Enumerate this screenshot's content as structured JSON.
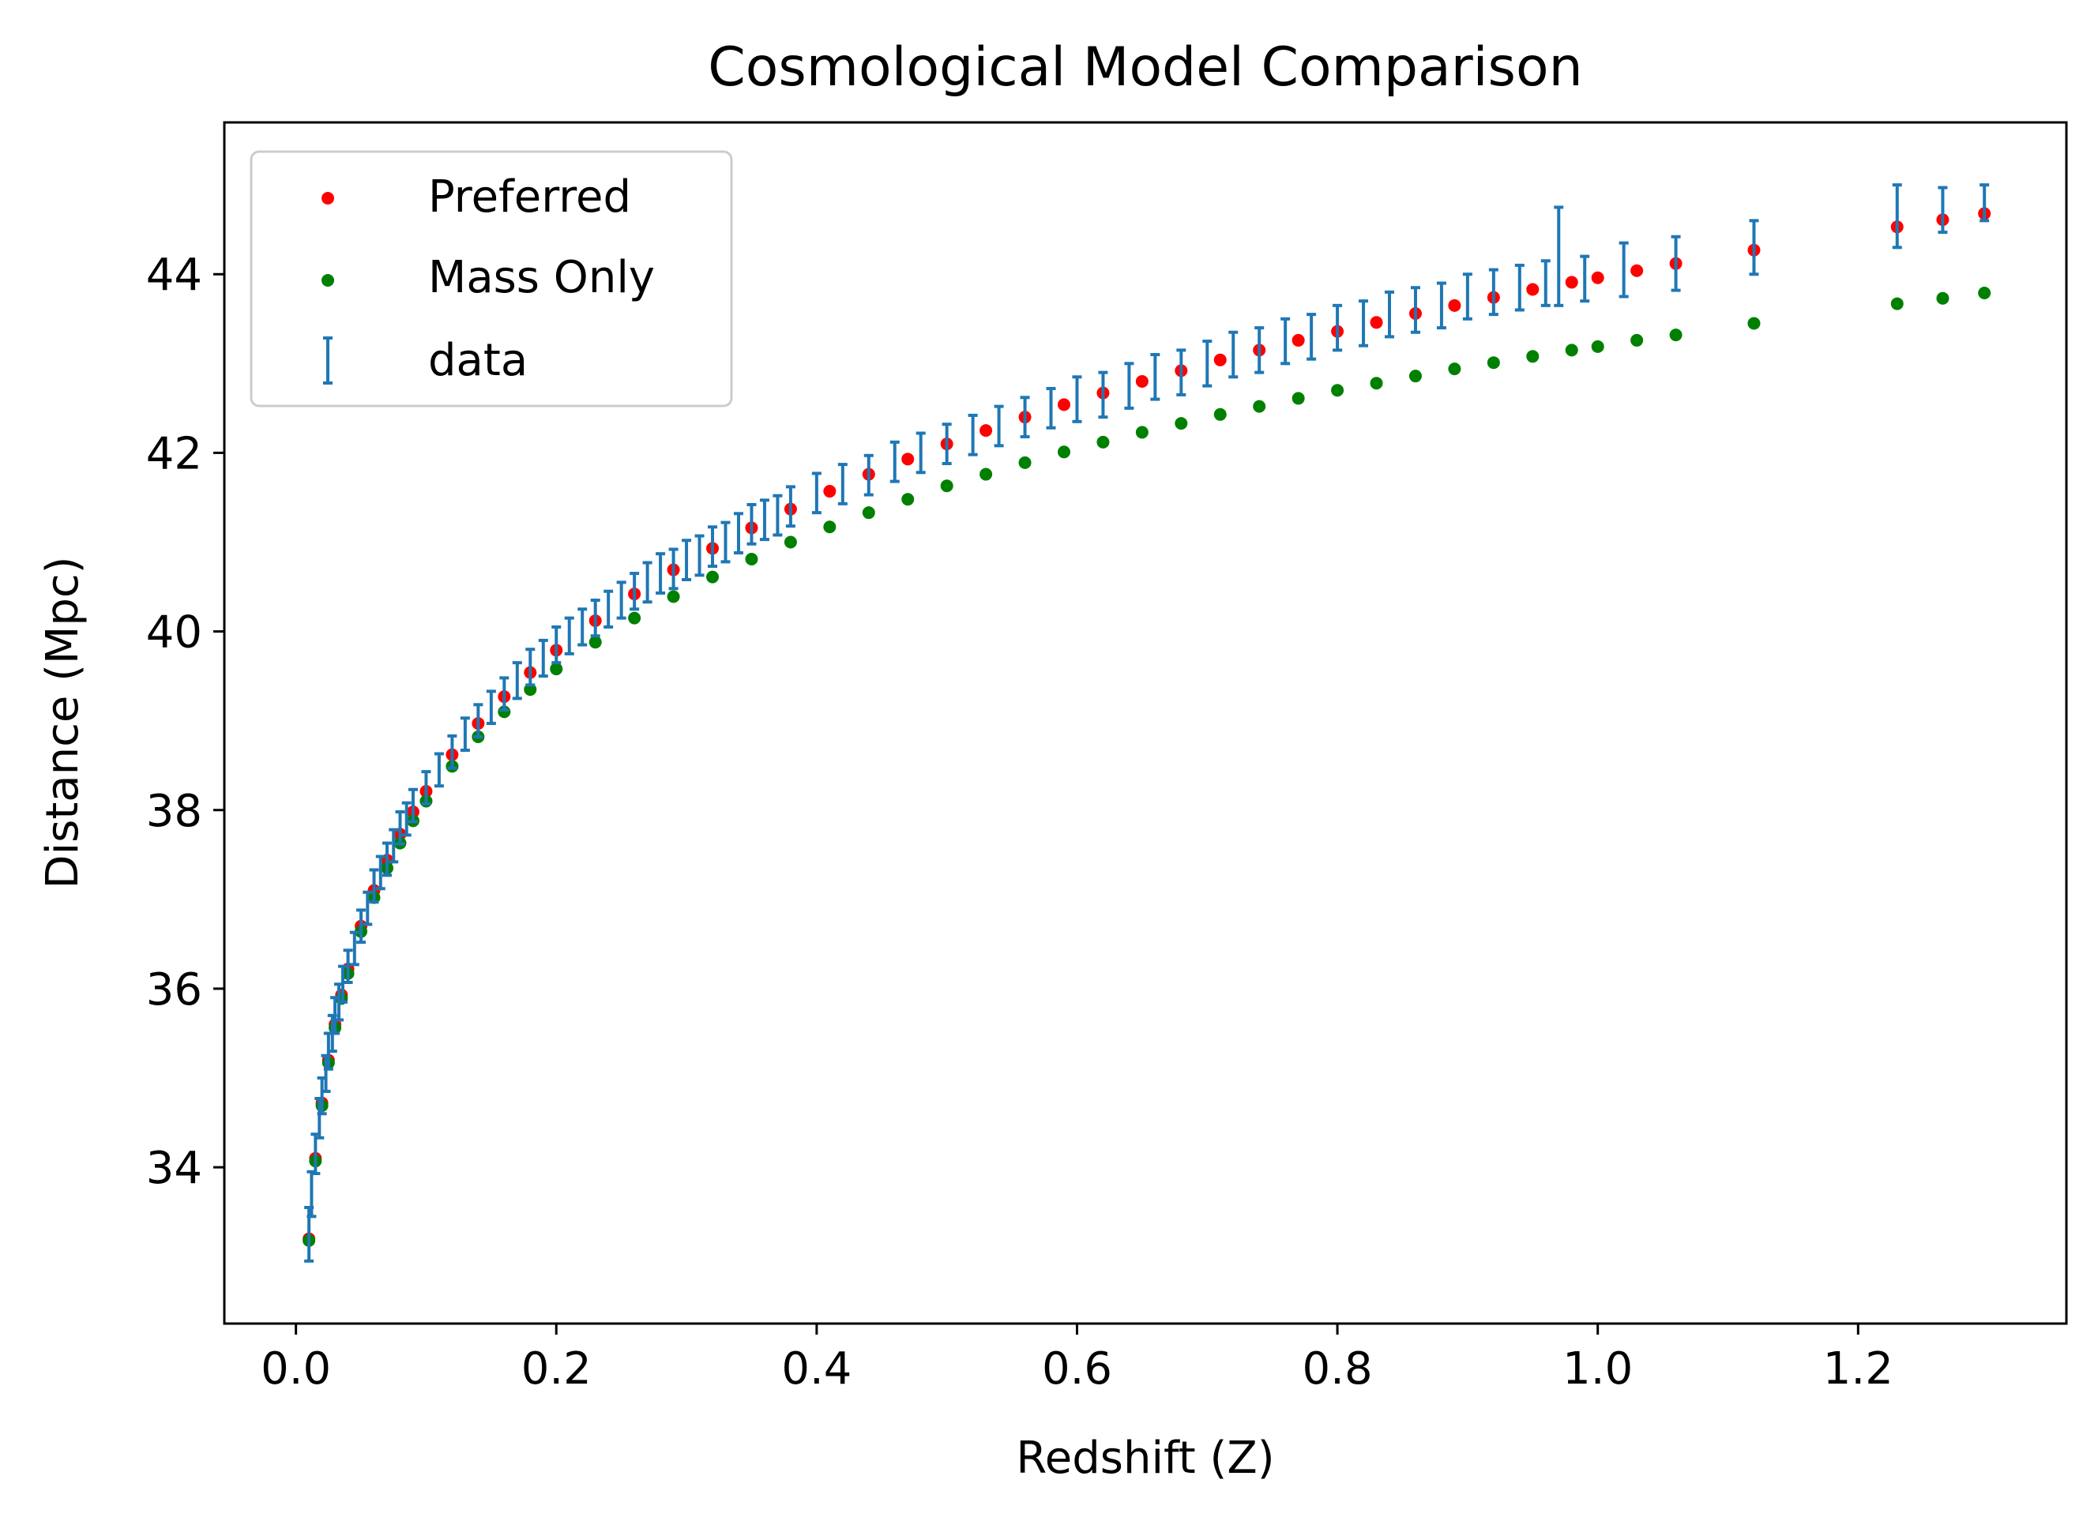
{
  "chart_data": {
    "type": "scatter",
    "title": "Cosmological Model Comparison",
    "xlabel": "Redshift (Z)",
    "ylabel": "Distance (Mpc)",
    "xlim": [
      -0.055,
      1.36
    ],
    "ylim": [
      32.25,
      45.7
    ],
    "xticks": [
      0.0,
      0.2,
      0.4,
      0.6,
      0.8,
      1.0,
      1.2
    ],
    "xtick_labels": [
      "0.0",
      "0.2",
      "0.4",
      "0.6",
      "0.8",
      "1.0",
      "1.2"
    ],
    "yticks": [
      34,
      36,
      38,
      40,
      42,
      44
    ],
    "ytick_labels": [
      "34",
      "36",
      "38",
      "40",
      "42",
      "44"
    ],
    "grid": false,
    "legend_position": "upper-left",
    "series": [
      {
        "name": "Preferred",
        "kind": "points",
        "color": "#ff0000",
        "points": [
          [
            0.01,
            33.2
          ],
          [
            0.015,
            34.1
          ],
          [
            0.02,
            34.72
          ],
          [
            0.025,
            35.2
          ],
          [
            0.03,
            35.6
          ],
          [
            0.035,
            35.93
          ],
          [
            0.04,
            36.22
          ],
          [
            0.05,
            36.7
          ],
          [
            0.06,
            37.1
          ],
          [
            0.07,
            37.44
          ],
          [
            0.08,
            37.73
          ],
          [
            0.09,
            37.98
          ],
          [
            0.1,
            38.21
          ],
          [
            0.12,
            38.62
          ],
          [
            0.14,
            38.97
          ],
          [
            0.16,
            39.27
          ],
          [
            0.18,
            39.54
          ],
          [
            0.2,
            39.79
          ],
          [
            0.23,
            40.12
          ],
          [
            0.26,
            40.42
          ],
          [
            0.29,
            40.69
          ],
          [
            0.32,
            40.93
          ],
          [
            0.35,
            41.16
          ],
          [
            0.38,
            41.37
          ],
          [
            0.41,
            41.57
          ],
          [
            0.44,
            41.76
          ],
          [
            0.47,
            41.93
          ],
          [
            0.5,
            42.1
          ],
          [
            0.53,
            42.25
          ],
          [
            0.56,
            42.4
          ],
          [
            0.59,
            42.54
          ],
          [
            0.62,
            42.67
          ],
          [
            0.65,
            42.8
          ],
          [
            0.68,
            42.92
          ],
          [
            0.71,
            43.04
          ],
          [
            0.74,
            43.15
          ],
          [
            0.77,
            43.26
          ],
          [
            0.8,
            43.36
          ],
          [
            0.83,
            43.46
          ],
          [
            0.86,
            43.56
          ],
          [
            0.89,
            43.65
          ],
          [
            0.92,
            43.74
          ],
          [
            0.95,
            43.83
          ],
          [
            0.98,
            43.91
          ],
          [
            1.0,
            43.96
          ],
          [
            1.03,
            44.04
          ],
          [
            1.06,
            44.12
          ],
          [
            1.12,
            44.27
          ],
          [
            1.23,
            44.53
          ],
          [
            1.265,
            44.61
          ],
          [
            1.297,
            44.68
          ]
        ]
      },
      {
        "name": "Mass Only",
        "kind": "points",
        "color": "#008000",
        "points": [
          [
            0.01,
            33.18
          ],
          [
            0.015,
            34.07
          ],
          [
            0.02,
            34.69
          ],
          [
            0.025,
            35.17
          ],
          [
            0.03,
            35.56
          ],
          [
            0.035,
            35.89
          ],
          [
            0.04,
            36.17
          ],
          [
            0.05,
            36.64
          ],
          [
            0.06,
            37.02
          ],
          [
            0.07,
            37.35
          ],
          [
            0.08,
            37.63
          ],
          [
            0.09,
            37.88
          ],
          [
            0.1,
            38.1
          ],
          [
            0.12,
            38.49
          ],
          [
            0.14,
            38.82
          ],
          [
            0.16,
            39.1
          ],
          [
            0.18,
            39.35
          ],
          [
            0.2,
            39.58
          ],
          [
            0.23,
            39.88
          ],
          [
            0.26,
            40.15
          ],
          [
            0.29,
            40.39
          ],
          [
            0.32,
            40.61
          ],
          [
            0.35,
            40.81
          ],
          [
            0.38,
            41.0
          ],
          [
            0.41,
            41.17
          ],
          [
            0.44,
            41.33
          ],
          [
            0.47,
            41.48
          ],
          [
            0.5,
            41.63
          ],
          [
            0.53,
            41.76
          ],
          [
            0.56,
            41.89
          ],
          [
            0.59,
            42.01
          ],
          [
            0.62,
            42.12
          ],
          [
            0.65,
            42.23
          ],
          [
            0.68,
            42.33
          ],
          [
            0.71,
            42.43
          ],
          [
            0.74,
            42.52
          ],
          [
            0.77,
            42.61
          ],
          [
            0.8,
            42.7
          ],
          [
            0.83,
            42.78
          ],
          [
            0.86,
            42.86
          ],
          [
            0.89,
            42.94
          ],
          [
            0.92,
            43.01
          ],
          [
            0.95,
            43.08
          ],
          [
            0.98,
            43.15
          ],
          [
            1.0,
            43.19
          ],
          [
            1.03,
            43.26
          ],
          [
            1.06,
            43.32
          ],
          [
            1.12,
            43.45
          ],
          [
            1.23,
            43.67
          ],
          [
            1.265,
            43.73
          ],
          [
            1.297,
            43.79
          ]
        ]
      },
      {
        "name": "data",
        "kind": "errorbar",
        "color": "#1f77b4",
        "points": [
          [
            0.01,
            33.25,
            0.3
          ],
          [
            0.012,
            33.7,
            0.25
          ],
          [
            0.015,
            34.15,
            0.22
          ],
          [
            0.018,
            34.55,
            0.22
          ],
          [
            0.02,
            34.8,
            0.2
          ],
          [
            0.023,
            35.05,
            0.2
          ],
          [
            0.025,
            35.3,
            0.2
          ],
          [
            0.028,
            35.5,
            0.2
          ],
          [
            0.03,
            35.7,
            0.2
          ],
          [
            0.033,
            35.85,
            0.2
          ],
          [
            0.036,
            36.05,
            0.2
          ],
          [
            0.04,
            36.25,
            0.18
          ],
          [
            0.045,
            36.45,
            0.18
          ],
          [
            0.05,
            36.7,
            0.18
          ],
          [
            0.055,
            36.9,
            0.18
          ],
          [
            0.06,
            37.15,
            0.18
          ],
          [
            0.065,
            37.3,
            0.18
          ],
          [
            0.07,
            37.45,
            0.18
          ],
          [
            0.075,
            37.6,
            0.18
          ],
          [
            0.08,
            37.8,
            0.18
          ],
          [
            0.085,
            37.9,
            0.18
          ],
          [
            0.09,
            38.05,
            0.18
          ],
          [
            0.1,
            38.25,
            0.18
          ],
          [
            0.11,
            38.45,
            0.18
          ],
          [
            0.12,
            38.65,
            0.18
          ],
          [
            0.13,
            38.85,
            0.18
          ],
          [
            0.14,
            39.0,
            0.18
          ],
          [
            0.15,
            39.15,
            0.18
          ],
          [
            0.16,
            39.3,
            0.18
          ],
          [
            0.17,
            39.45,
            0.2
          ],
          [
            0.18,
            39.6,
            0.2
          ],
          [
            0.19,
            39.7,
            0.2
          ],
          [
            0.2,
            39.85,
            0.2
          ],
          [
            0.21,
            39.95,
            0.2
          ],
          [
            0.22,
            40.05,
            0.2
          ],
          [
            0.23,
            40.15,
            0.2
          ],
          [
            0.24,
            40.25,
            0.2
          ],
          [
            0.25,
            40.35,
            0.2
          ],
          [
            0.26,
            40.45,
            0.2
          ],
          [
            0.27,
            40.55,
            0.22
          ],
          [
            0.28,
            40.65,
            0.22
          ],
          [
            0.29,
            40.7,
            0.22
          ],
          [
            0.3,
            40.8,
            0.22
          ],
          [
            0.31,
            40.85,
            0.22
          ],
          [
            0.32,
            40.95,
            0.22
          ],
          [
            0.33,
            41.0,
            0.22
          ],
          [
            0.34,
            41.1,
            0.22
          ],
          [
            0.35,
            41.2,
            0.22
          ],
          [
            0.36,
            41.25,
            0.22
          ],
          [
            0.37,
            41.3,
            0.22
          ],
          [
            0.38,
            41.4,
            0.22
          ],
          [
            0.4,
            41.55,
            0.22
          ],
          [
            0.42,
            41.65,
            0.22
          ],
          [
            0.44,
            41.75,
            0.22
          ],
          [
            0.46,
            41.9,
            0.22
          ],
          [
            0.48,
            42.0,
            0.22
          ],
          [
            0.5,
            42.1,
            0.22
          ],
          [
            0.52,
            42.2,
            0.22
          ],
          [
            0.54,
            42.3,
            0.22
          ],
          [
            0.56,
            42.4,
            0.22
          ],
          [
            0.58,
            42.5,
            0.22
          ],
          [
            0.6,
            42.6,
            0.25
          ],
          [
            0.62,
            42.65,
            0.25
          ],
          [
            0.64,
            42.75,
            0.25
          ],
          [
            0.66,
            42.85,
            0.25
          ],
          [
            0.68,
            42.9,
            0.25
          ],
          [
            0.7,
            43.0,
            0.25
          ],
          [
            0.72,
            43.1,
            0.25
          ],
          [
            0.74,
            43.15,
            0.25
          ],
          [
            0.76,
            43.25,
            0.25
          ],
          [
            0.78,
            43.3,
            0.25
          ],
          [
            0.8,
            43.4,
            0.25
          ],
          [
            0.82,
            43.45,
            0.25
          ],
          [
            0.84,
            43.55,
            0.25
          ],
          [
            0.86,
            43.6,
            0.25
          ],
          [
            0.88,
            43.65,
            0.25
          ],
          [
            0.9,
            43.75,
            0.25
          ],
          [
            0.92,
            43.8,
            0.25
          ],
          [
            0.94,
            43.85,
            0.25
          ],
          [
            0.96,
            43.9,
            0.25
          ],
          [
            0.97,
            44.2,
            0.55
          ],
          [
            0.99,
            43.95,
            0.25
          ],
          [
            1.02,
            44.05,
            0.3
          ],
          [
            1.06,
            44.12,
            0.3
          ],
          [
            1.12,
            44.3,
            0.3
          ],
          [
            1.23,
            44.65,
            0.35
          ],
          [
            1.265,
            44.72,
            0.25
          ],
          [
            1.297,
            44.8,
            0.2
          ]
        ]
      }
    ]
  }
}
